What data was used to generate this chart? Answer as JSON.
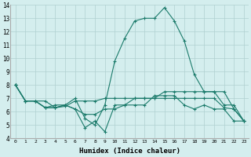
{
  "x": [
    0,
    1,
    2,
    3,
    4,
    5,
    6,
    7,
    8,
    9,
    10,
    11,
    12,
    13,
    14,
    15,
    16,
    17,
    18,
    19,
    20,
    21,
    22,
    23
  ],
  "series1": [
    8.0,
    6.8,
    6.8,
    6.8,
    6.3,
    6.4,
    6.8,
    6.8,
    6.8,
    7.0,
    7.0,
    7.0,
    7.0,
    7.0,
    7.0,
    7.0,
    7.0,
    7.0,
    7.0,
    7.0,
    7.0,
    6.3,
    6.2,
    5.3
  ],
  "series2": [
    8.0,
    6.8,
    6.8,
    6.3,
    6.3,
    6.5,
    7.0,
    5.5,
    5.0,
    6.5,
    9.8,
    11.5,
    12.8,
    13.0,
    13.0,
    13.8,
    12.8,
    11.3,
    8.8,
    7.5,
    7.5,
    7.5,
    6.2,
    5.3
  ],
  "series3": [
    8.0,
    6.8,
    6.8,
    6.3,
    6.3,
    6.5,
    6.2,
    5.8,
    5.8,
    6.2,
    6.2,
    6.5,
    6.5,
    6.5,
    7.2,
    7.2,
    7.2,
    6.5,
    6.2,
    6.5,
    6.2,
    6.2,
    5.3,
    5.3
  ],
  "series4": [
    8.0,
    6.8,
    6.8,
    6.3,
    6.5,
    6.5,
    6.2,
    4.8,
    5.3,
    4.5,
    6.5,
    6.5,
    7.0,
    7.0,
    7.0,
    7.5,
    7.5,
    7.5,
    7.5,
    7.5,
    7.5,
    6.5,
    6.5,
    5.3
  ],
  "line_color": "#1a7a6a",
  "bg_color": "#d4eeee",
  "grid_color": "#b0d0d0",
  "xlabel": "Humidex (Indice chaleur)",
  "ylim": [
    4,
    14
  ],
  "xlim": [
    -0.5,
    23.5
  ],
  "yticks": [
    4,
    5,
    6,
    7,
    8,
    9,
    10,
    11,
    12,
    13,
    14
  ],
  "xticks": [
    0,
    1,
    2,
    3,
    4,
    5,
    6,
    7,
    8,
    9,
    10,
    11,
    12,
    13,
    14,
    15,
    16,
    17,
    18,
    19,
    20,
    21,
    22,
    23
  ]
}
